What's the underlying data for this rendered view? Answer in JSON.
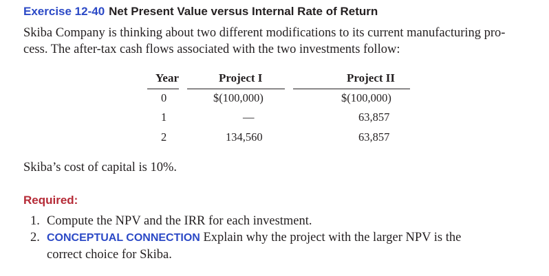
{
  "heading": {
    "number": "Exercise 12-40",
    "title": "Net Present Value versus Internal Rate of Return"
  },
  "intro": {
    "line1": "Skiba Company is thinking about two different modifications to its current manufacturing pro-",
    "line2": "cess. The after-tax cash flows associated with the two investments follow:"
  },
  "table": {
    "headers": {
      "year": "Year",
      "project1": "Project I",
      "project2": "Project II"
    },
    "rows": [
      {
        "year": "0",
        "project1": "$(100,000)",
        "project2": "$(100,000)"
      },
      {
        "year": "1",
        "project1": "—",
        "project2": "63,857"
      },
      {
        "year": "2",
        "project1": "134,560",
        "project2": "63,857"
      }
    ]
  },
  "cost_of_capital": "Skiba’s cost of capital is 10%.",
  "required": {
    "label": "Required:",
    "items": [
      {
        "num": "1.",
        "text": "Compute the NPV and the IRR for each investment."
      },
      {
        "num": "2.",
        "tag": "CONCEPTUAL CONNECTION",
        "text_line1": " Explain why the project with the larger NPV is the",
        "text_line2": "correct choice for Skiba."
      }
    ]
  },
  "colors": {
    "accent_blue": "#2b49c6",
    "accent_red": "#b52a36",
    "text": "#231f20"
  }
}
